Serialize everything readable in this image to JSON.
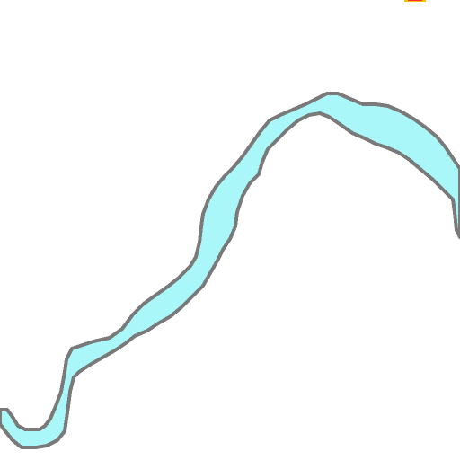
{
  "map": {
    "background_color": "#ffffff",
    "water_fill_color": "#a9f7f9",
    "water_outline_color": "#7a7a7a",
    "marker_fill_color": "#ff2a2a",
    "marker_border_color": "#f2c200"
  },
  "icons": {
    "corner_marker": "location-marker-icon"
  }
}
